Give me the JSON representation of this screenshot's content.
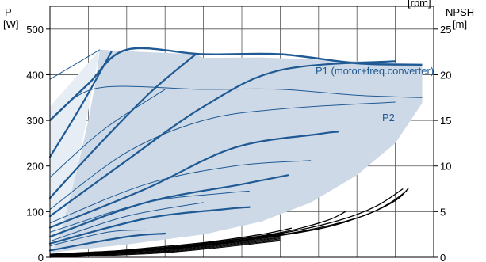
{
  "chart_data": {
    "type": "line",
    "title": "",
    "axis_title_top_right_fragment": "[rpm]",
    "left_axis": {
      "label_line1": "P",
      "label_line2": "[W]",
      "ylim": [
        0,
        550
      ],
      "ticks": [
        "0",
        "100",
        "200",
        "300",
        "400",
        "500"
      ]
    },
    "right_axis": {
      "label_line1": "NPSH",
      "label_line2": "[m]",
      "ylim": [
        0,
        27.5
      ],
      "ticks": [
        "0",
        "5",
        "10",
        "15",
        "20",
        "25"
      ]
    },
    "xlim": [
      0,
      100
    ],
    "grid": true,
    "colors": {
      "envelope_fill": "#cdd9e6",
      "envelope_light": "#e6edf4",
      "curve": "#1f5a94",
      "npsh": "#000000",
      "grid": "#555555"
    },
    "annotations": [
      {
        "name": "p1-label",
        "text": "P1 (motor+freq.converter)"
      },
      {
        "name": "p2-label",
        "text": "P2"
      }
    ],
    "envelope": {
      "lower_left_edge": [
        [
          0,
          0
        ],
        [
          3,
          60
        ],
        [
          7,
          190
        ],
        [
          10,
          300
        ],
        [
          12,
          390
        ],
        [
          13,
          455
        ]
      ],
      "upper_edge_p1": [
        [
          13,
          455
        ],
        [
          24,
          450
        ],
        [
          38,
          445
        ],
        [
          40,
          437
        ],
        [
          55,
          438
        ],
        [
          80,
          430
        ],
        [
          97,
          423
        ]
      ],
      "right_lower_edge": [
        [
          97,
          338
        ],
        [
          90,
          250
        ],
        [
          80,
          180
        ],
        [
          68,
          120
        ],
        [
          55,
          78
        ],
        [
          40,
          50
        ],
        [
          20,
          28
        ],
        [
          0,
          10
        ]
      ]
    },
    "p1_curves": [
      [
        [
          0,
          220
        ],
        [
          8,
          330
        ],
        [
          16,
          450
        ]
      ],
      [
        [
          0,
          130
        ],
        [
          12,
          240
        ],
        [
          26,
          360
        ],
        [
          38,
          445
        ]
      ],
      [
        [
          0,
          90
        ],
        [
          18,
          200
        ],
        [
          40,
          330
        ],
        [
          60,
          410
        ],
        [
          90,
          430
        ]
      ],
      [
        [
          0,
          65
        ],
        [
          25,
          150
        ],
        [
          48,
          240
        ],
        [
          70,
          270
        ],
        [
          75,
          275
        ]
      ],
      [
        [
          0,
          45
        ],
        [
          25,
          120
        ],
        [
          50,
          160
        ],
        [
          62,
          180
        ]
      ],
      [
        [
          0,
          30
        ],
        [
          25,
          85
        ],
        [
          45,
          105
        ],
        [
          52,
          110
        ]
      ],
      [
        [
          0,
          15
        ],
        [
          20,
          45
        ],
        [
          30,
          52
        ]
      ]
    ],
    "p1_top_curve": [
      [
        0,
        300
      ],
      [
        10,
        380
      ],
      [
        20,
        455
      ],
      [
        40,
        445
      ],
      [
        60,
        445
      ],
      [
        80,
        425
      ],
      [
        97,
        422
      ]
    ],
    "p2_curves": [
      [
        [
          0,
          390
        ],
        [
          8,
          430
        ],
        [
          13,
          455
        ]
      ],
      [
        [
          0,
          300
        ],
        [
          12,
          370
        ],
        [
          40,
          368
        ],
        [
          60,
          368
        ],
        [
          80,
          355
        ],
        [
          97,
          350
        ]
      ],
      [
        [
          0,
          175
        ],
        [
          14,
          280
        ],
        [
          30,
          368
        ]
      ],
      [
        [
          0,
          105
        ],
        [
          20,
          230
        ],
        [
          40,
          300
        ],
        [
          60,
          325
        ],
        [
          90,
          340
        ]
      ],
      [
        [
          0,
          75
        ],
        [
          25,
          160
        ],
        [
          48,
          200
        ],
        [
          68,
          212
        ]
      ],
      [
        [
          0,
          55
        ],
        [
          25,
          120
        ],
        [
          45,
          140
        ],
        [
          52,
          145
        ]
      ],
      [
        [
          0,
          35
        ],
        [
          20,
          90
        ],
        [
          40,
          120
        ]
      ],
      [
        [
          0,
          25
        ],
        [
          15,
          55
        ],
        [
          25,
          60
        ]
      ]
    ],
    "npsh_curves": [
      [
        [
          0,
          0
        ],
        [
          20,
          0.8
        ],
        [
          40,
          1.6
        ],
        [
          55,
          2.5
        ],
        [
          63,
          3.2
        ]
      ],
      [
        [
          0,
          0
        ],
        [
          20,
          0.7
        ],
        [
          40,
          1.5
        ],
        [
          60,
          2.7
        ],
        [
          72,
          4.0
        ],
        [
          77,
          5.0
        ]
      ],
      [
        [
          0,
          0
        ],
        [
          20,
          0.6
        ],
        [
          40,
          1.5
        ],
        [
          60,
          2.6
        ],
        [
          75,
          4.0
        ],
        [
          85,
          5.6
        ],
        [
          92,
          7.5
        ]
      ],
      [
        [
          0,
          0
        ],
        [
          25,
          0.8
        ],
        [
          45,
          1.6
        ],
        [
          65,
          2.8
        ],
        [
          80,
          4.3
        ],
        [
          88,
          5.8
        ],
        [
          93,
          7.3
        ]
      ],
      [
        [
          0,
          0
        ],
        [
          30,
          0.9
        ],
        [
          50,
          1.8
        ],
        [
          70,
          3.1
        ],
        [
          82,
          4.6
        ],
        [
          90,
          6.2
        ],
        [
          93.5,
          7.6
        ]
      ]
    ]
  }
}
